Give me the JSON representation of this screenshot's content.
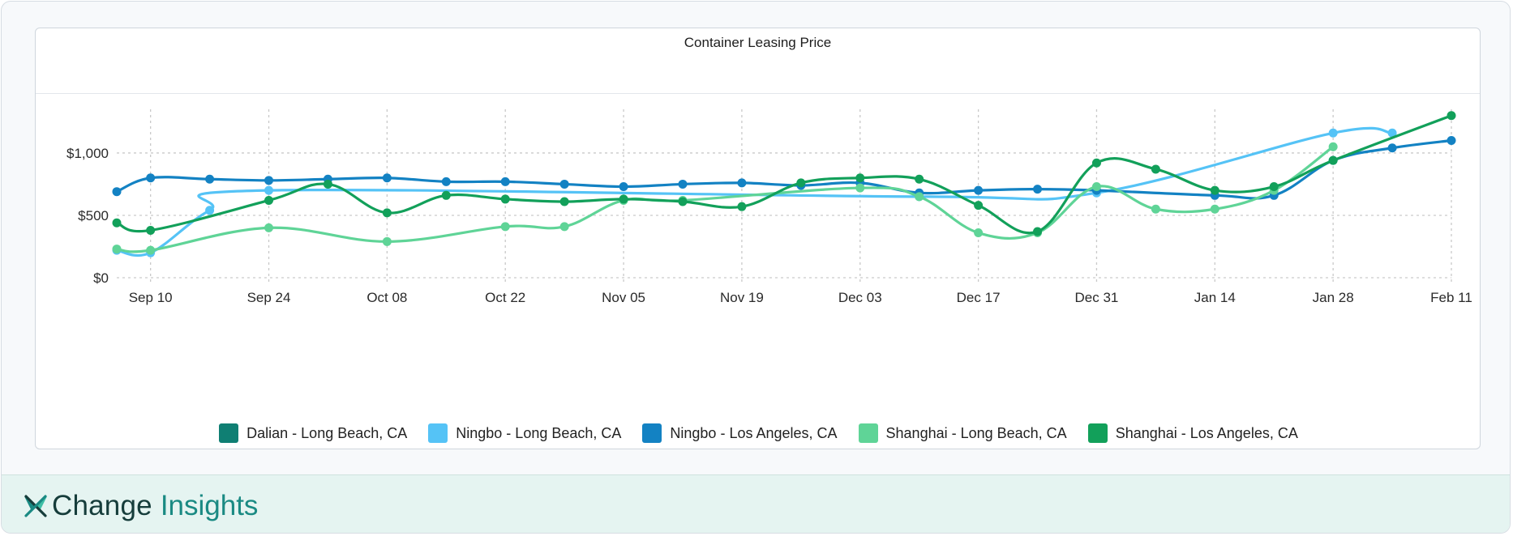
{
  "chart_data": {
    "type": "line",
    "title": "Container Leasing Price",
    "x_ticks": [
      "Sep 10",
      "Sep 24",
      "Oct 08",
      "Oct 22",
      "Nov 05",
      "Nov 19",
      "Dec 03",
      "Dec 17",
      "Dec 31",
      "Jan 14",
      "Jan 28",
      "Feb 11"
    ],
    "y_ticks": [
      "$0",
      "$500",
      "$1,000"
    ],
    "y_tick_values": [
      0,
      500,
      1000
    ],
    "ylim": [
      0,
      1350
    ],
    "x_range": [
      "2023-09-06",
      "2024-02-11"
    ],
    "grid": true,
    "legend_position": "bottom",
    "series": [
      {
        "name": "Dalian - Long Beach, CA",
        "color": "#0f7f73",
        "points": []
      },
      {
        "name": "Ningbo - Long Beach, CA",
        "color": "#55c3f6",
        "points": [
          [
            "2023-09-06",
            220
          ],
          [
            "2023-09-10",
            200
          ],
          [
            "2023-09-17",
            540
          ],
          [
            "2023-09-24",
            700
          ],
          [
            "2023-12-10",
            650
          ],
          [
            "2023-12-31",
            680
          ],
          [
            "2024-01-28",
            1160
          ],
          [
            "2024-02-04",
            1160
          ]
        ]
      },
      {
        "name": "Ningbo - Los Angeles, CA",
        "color": "#1382c3",
        "points": [
          [
            "2023-09-06",
            690
          ],
          [
            "2023-09-10",
            800
          ],
          [
            "2023-09-17",
            790
          ],
          [
            "2023-09-24",
            780
          ],
          [
            "2023-10-01",
            790
          ],
          [
            "2023-10-08",
            800
          ],
          [
            "2023-10-15",
            770
          ],
          [
            "2023-10-22",
            770
          ],
          [
            "2023-10-29",
            750
          ],
          [
            "2023-11-05",
            730
          ],
          [
            "2023-11-12",
            750
          ],
          [
            "2023-11-19",
            760
          ],
          [
            "2023-11-26",
            740
          ],
          [
            "2023-12-03",
            760
          ],
          [
            "2023-12-10",
            680
          ],
          [
            "2023-12-17",
            700
          ],
          [
            "2023-12-24",
            710
          ],
          [
            "2023-12-31",
            700
          ],
          [
            "2024-01-14",
            660
          ],
          [
            "2024-01-21",
            660
          ],
          [
            "2024-01-28",
            940
          ],
          [
            "2024-02-04",
            1040
          ],
          [
            "2024-02-11",
            1100
          ]
        ]
      },
      {
        "name": "Shanghai - Long Beach, CA",
        "color": "#5fd497",
        "points": [
          [
            "2023-09-06",
            230
          ],
          [
            "2023-09-10",
            220
          ],
          [
            "2023-09-24",
            400
          ],
          [
            "2023-10-08",
            290
          ],
          [
            "2023-10-22",
            410
          ],
          [
            "2023-10-29",
            410
          ],
          [
            "2023-11-05",
            620
          ],
          [
            "2023-11-12",
            620
          ],
          [
            "2023-12-03",
            720
          ],
          [
            "2023-12-10",
            650
          ],
          [
            "2023-12-17",
            360
          ],
          [
            "2023-12-24",
            360
          ],
          [
            "2023-12-31",
            730
          ],
          [
            "2024-01-07",
            550
          ],
          [
            "2024-01-14",
            550
          ],
          [
            "2024-01-21",
            700
          ],
          [
            "2024-01-28",
            1050
          ]
        ]
      },
      {
        "name": "Shanghai - Los Angeles, CA",
        "color": "#12a05a",
        "points": [
          [
            "2023-09-06",
            440
          ],
          [
            "2023-09-10",
            380
          ],
          [
            "2023-09-24",
            620
          ],
          [
            "2023-10-01",
            750
          ],
          [
            "2023-10-08",
            520
          ],
          [
            "2023-10-15",
            660
          ],
          [
            "2023-10-22",
            630
          ],
          [
            "2023-10-29",
            610
          ],
          [
            "2023-11-05",
            630
          ],
          [
            "2023-11-12",
            610
          ],
          [
            "2023-11-19",
            570
          ],
          [
            "2023-11-26",
            760
          ],
          [
            "2023-12-03",
            800
          ],
          [
            "2023-12-10",
            790
          ],
          [
            "2023-12-17",
            580
          ],
          [
            "2023-12-24",
            370
          ],
          [
            "2023-12-31",
            920
          ],
          [
            "2024-01-07",
            870
          ],
          [
            "2024-01-14",
            700
          ],
          [
            "2024-01-21",
            730
          ],
          [
            "2024-01-28",
            940
          ],
          [
            "2024-02-11",
            1300
          ]
        ]
      }
    ]
  },
  "brand": {
    "name": "Change",
    "sub": "Insights"
  }
}
